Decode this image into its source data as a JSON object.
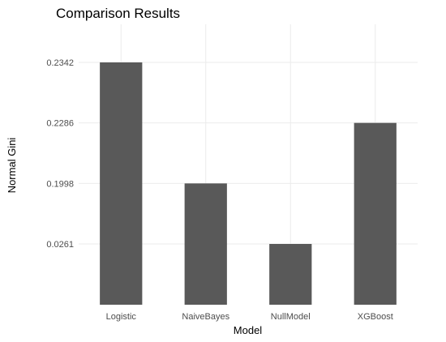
{
  "chart_data": {
    "type": "bar",
    "title": "Comparison Results",
    "xlabel": "Model",
    "ylabel": "Normal Gini",
    "categories": [
      "Logistic",
      "NaiveBayes",
      "NullModel",
      "XGBoost"
    ],
    "y_tick_labels": [
      "0.0261",
      "0.1998",
      "0.2286",
      "0.2342"
    ],
    "values_tick_level": [
      4,
      2,
      1,
      3
    ],
    "y_axis_scale": "discrete (ordinal levels, bars drawn by rank)",
    "grid": true,
    "legend": "none"
  }
}
